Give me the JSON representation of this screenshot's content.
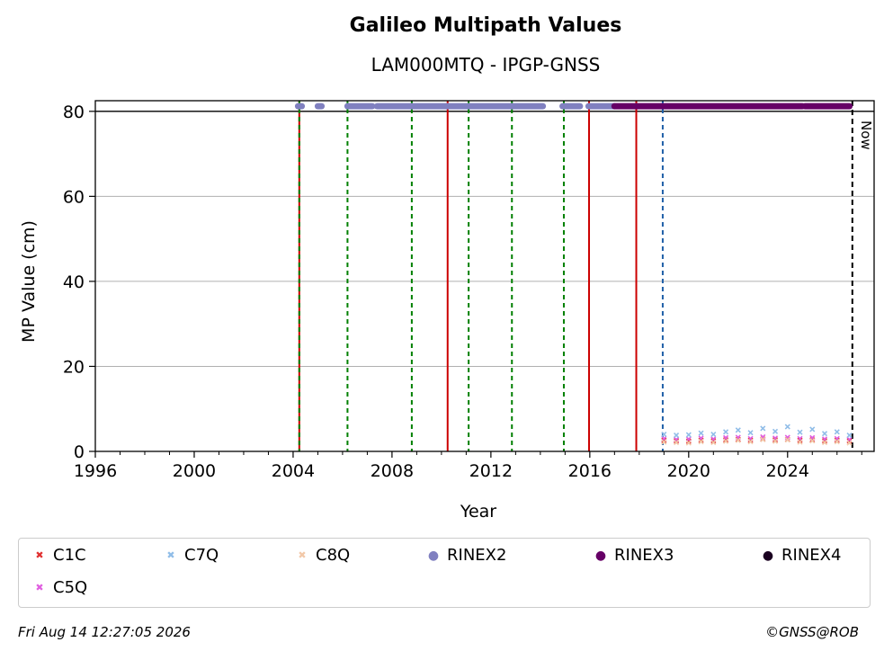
{
  "chart_data": {
    "type": "scatter",
    "title": "Galileo Multipath Values",
    "subtitle": "LAM000MTQ - IPGP-GNSS",
    "xlabel": "Year",
    "ylabel": "MP Value (cm)",
    "xlim": [
      1996,
      2027.5
    ],
    "ylim": [
      0,
      82.5
    ],
    "x_ticks": [
      1996,
      2000,
      2004,
      2008,
      2012,
      2016,
      2020,
      2024
    ],
    "y_ticks": [
      0,
      20,
      40,
      60,
      80
    ],
    "grid": "y",
    "reference_line_y": 80,
    "now_label": "Now",
    "now_x": 2026.62,
    "vertical_lines": [
      {
        "x": 2004.25,
        "style": "solid",
        "color": "#cc0000"
      },
      {
        "x": 2004.25,
        "style": "dashed",
        "color": "#008000"
      },
      {
        "x": 2006.2,
        "style": "dashed",
        "color": "#008000"
      },
      {
        "x": 2008.8,
        "style": "dashed",
        "color": "#008000"
      },
      {
        "x": 2010.25,
        "style": "solid",
        "color": "#cc0000"
      },
      {
        "x": 2011.1,
        "style": "dashed",
        "color": "#008000"
      },
      {
        "x": 2012.85,
        "style": "dashed",
        "color": "#008000"
      },
      {
        "x": 2014.95,
        "style": "dashed",
        "color": "#008000"
      },
      {
        "x": 2015.97,
        "style": "solid",
        "color": "#cc0000"
      },
      {
        "x": 2017.88,
        "style": "solid",
        "color": "#cc0000"
      },
      {
        "x": 2018.95,
        "style": "dashed",
        "color": "#1f5fa8"
      }
    ],
    "rinex_bands": [
      {
        "name": "RINEX2",
        "color": "#8080c0",
        "segments": [
          [
            2004.2,
            2004.35
          ],
          [
            2005.0,
            2005.15
          ],
          [
            2006.2,
            2007.2
          ],
          [
            2007.4,
            2014.1
          ],
          [
            2014.9,
            2015.6
          ],
          [
            2015.95,
            2017.0
          ]
        ]
      },
      {
        "name": "RINEX3",
        "color": "#660066",
        "segments": [
          [
            2017.0,
            2024.6
          ],
          [
            2024.7,
            2026.5
          ]
        ]
      }
    ],
    "series": [
      {
        "name": "C1C",
        "color": "#e03030",
        "x": [
          2019.0,
          2019.5,
          2020.0,
          2020.5,
          2021.0,
          2021.5,
          2022.0,
          2022.5,
          2023.0,
          2023.5,
          2024.0,
          2024.5,
          2025.0,
          2025.5,
          2026.0,
          2026.5
        ],
        "values": [
          2.6,
          2.5,
          2.4,
          2.6,
          2.5,
          2.7,
          2.8,
          2.6,
          2.9,
          2.7,
          2.8,
          2.6,
          2.7,
          2.5,
          2.6,
          2.5
        ]
      },
      {
        "name": "C5Q",
        "color": "#e060e0",
        "x": [
          2019.0,
          2019.5,
          2020.0,
          2020.5,
          2021.0,
          2021.5,
          2022.0,
          2022.5,
          2023.0,
          2023.5,
          2024.0,
          2024.5,
          2025.0,
          2025.5,
          2026.0,
          2026.5
        ],
        "values": [
          3.0,
          2.8,
          2.9,
          3.1,
          2.9,
          3.2,
          3.3,
          3.0,
          3.4,
          3.1,
          3.3,
          3.0,
          3.2,
          2.9,
          3.0,
          2.8
        ]
      },
      {
        "name": "C7Q",
        "color": "#90bde8",
        "x": [
          2019.0,
          2019.5,
          2020.0,
          2020.5,
          2021.0,
          2021.5,
          2022.0,
          2022.5,
          2023.0,
          2023.5,
          2024.0,
          2024.5,
          2025.0,
          2025.5,
          2026.0,
          2026.5
        ],
        "values": [
          4.0,
          3.8,
          3.9,
          4.3,
          4.0,
          4.6,
          5.0,
          4.4,
          5.4,
          4.7,
          5.8,
          4.5,
          5.2,
          4.2,
          4.6,
          3.8
        ]
      },
      {
        "name": "C8Q",
        "color": "#f2c8a8",
        "x": [
          2019.0,
          2019.5,
          2020.0,
          2020.5,
          2021.0,
          2021.5,
          2022.0,
          2022.5,
          2023.0,
          2023.5,
          2024.0,
          2024.5,
          2025.0,
          2025.5,
          2026.0,
          2026.5
        ],
        "values": [
          2.2,
          2.1,
          2.0,
          2.3,
          2.1,
          2.4,
          2.6,
          2.3,
          2.8,
          2.4,
          2.7,
          2.2,
          2.5,
          2.1,
          2.3,
          2.0
        ]
      }
    ],
    "legend": [
      {
        "label": "C1C",
        "marker": "x",
        "color": "#e03030"
      },
      {
        "label": "C7Q",
        "marker": "x",
        "color": "#90bde8"
      },
      {
        "label": "C8Q",
        "marker": "x",
        "color": "#f2c8a8"
      },
      {
        "label": "RINEX2",
        "marker": "dot",
        "color": "#8080c0"
      },
      {
        "label": "RINEX3",
        "marker": "dot",
        "color": "#660066"
      },
      {
        "label": "RINEX4",
        "marker": "dot",
        "color": "#1a0020"
      },
      {
        "label": "C5Q",
        "marker": "x",
        "color": "#e060e0"
      }
    ],
    "legend_placement": "bottom"
  },
  "footer": {
    "timestamp": "Fri Aug 14 12:27:05 2026",
    "credit": "©GNSS@ROB"
  }
}
